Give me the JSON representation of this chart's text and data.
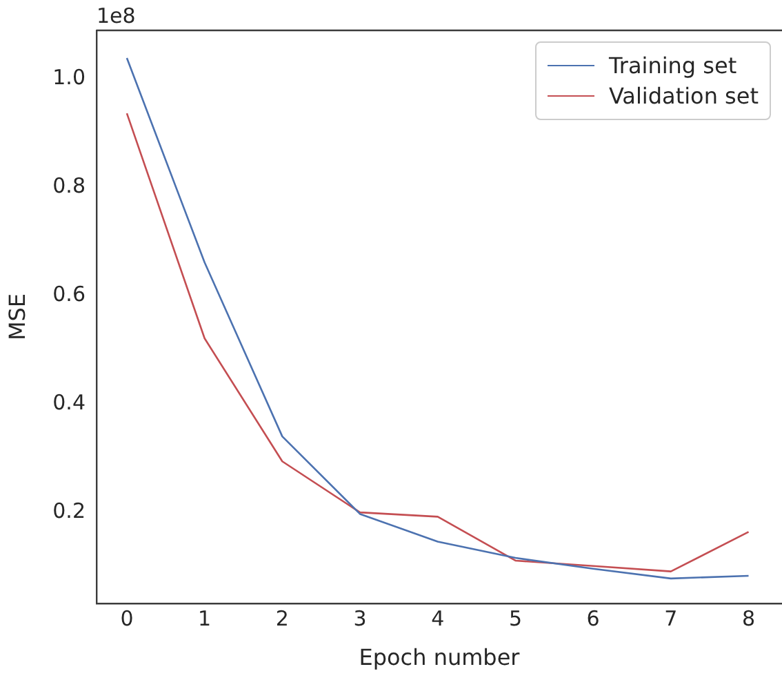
{
  "chart_data": {
    "type": "line",
    "xlabel": "Epoch number",
    "ylabel": "MSE",
    "x": [
      0,
      1,
      2,
      3,
      4,
      5,
      6,
      7,
      8
    ],
    "series": [
      {
        "name": "Training set",
        "color": "#4c72b0",
        "values": [
          1.038,
          0.661,
          0.34,
          0.197,
          0.146,
          0.116,
          0.096,
          0.078,
          0.083
        ]
      },
      {
        "name": "Validation set",
        "color": "#c44e52",
        "values": [
          0.936,
          0.521,
          0.294,
          0.2,
          0.192,
          0.111,
          0.101,
          0.091,
          0.164
        ]
      }
    ],
    "xlim": [
      -0.39,
      8.43
    ],
    "xticks": [
      0,
      1,
      2,
      3,
      4,
      5,
      6,
      7,
      8
    ],
    "ylim": [
      0.032,
      1.089
    ],
    "yticks": [
      {
        "value": 0.2,
        "label": "0.2"
      },
      {
        "value": 0.4,
        "label": "0.4"
      },
      {
        "value": 0.6,
        "label": "0.6"
      },
      {
        "value": 0.8,
        "label": "0.8"
      },
      {
        "value": 1.0,
        "label": "1.0"
      }
    ],
    "annotations": [
      "1e8"
    ],
    "grid": false,
    "legend": "top right",
    "marker": "none",
    "line_style": "solid"
  }
}
